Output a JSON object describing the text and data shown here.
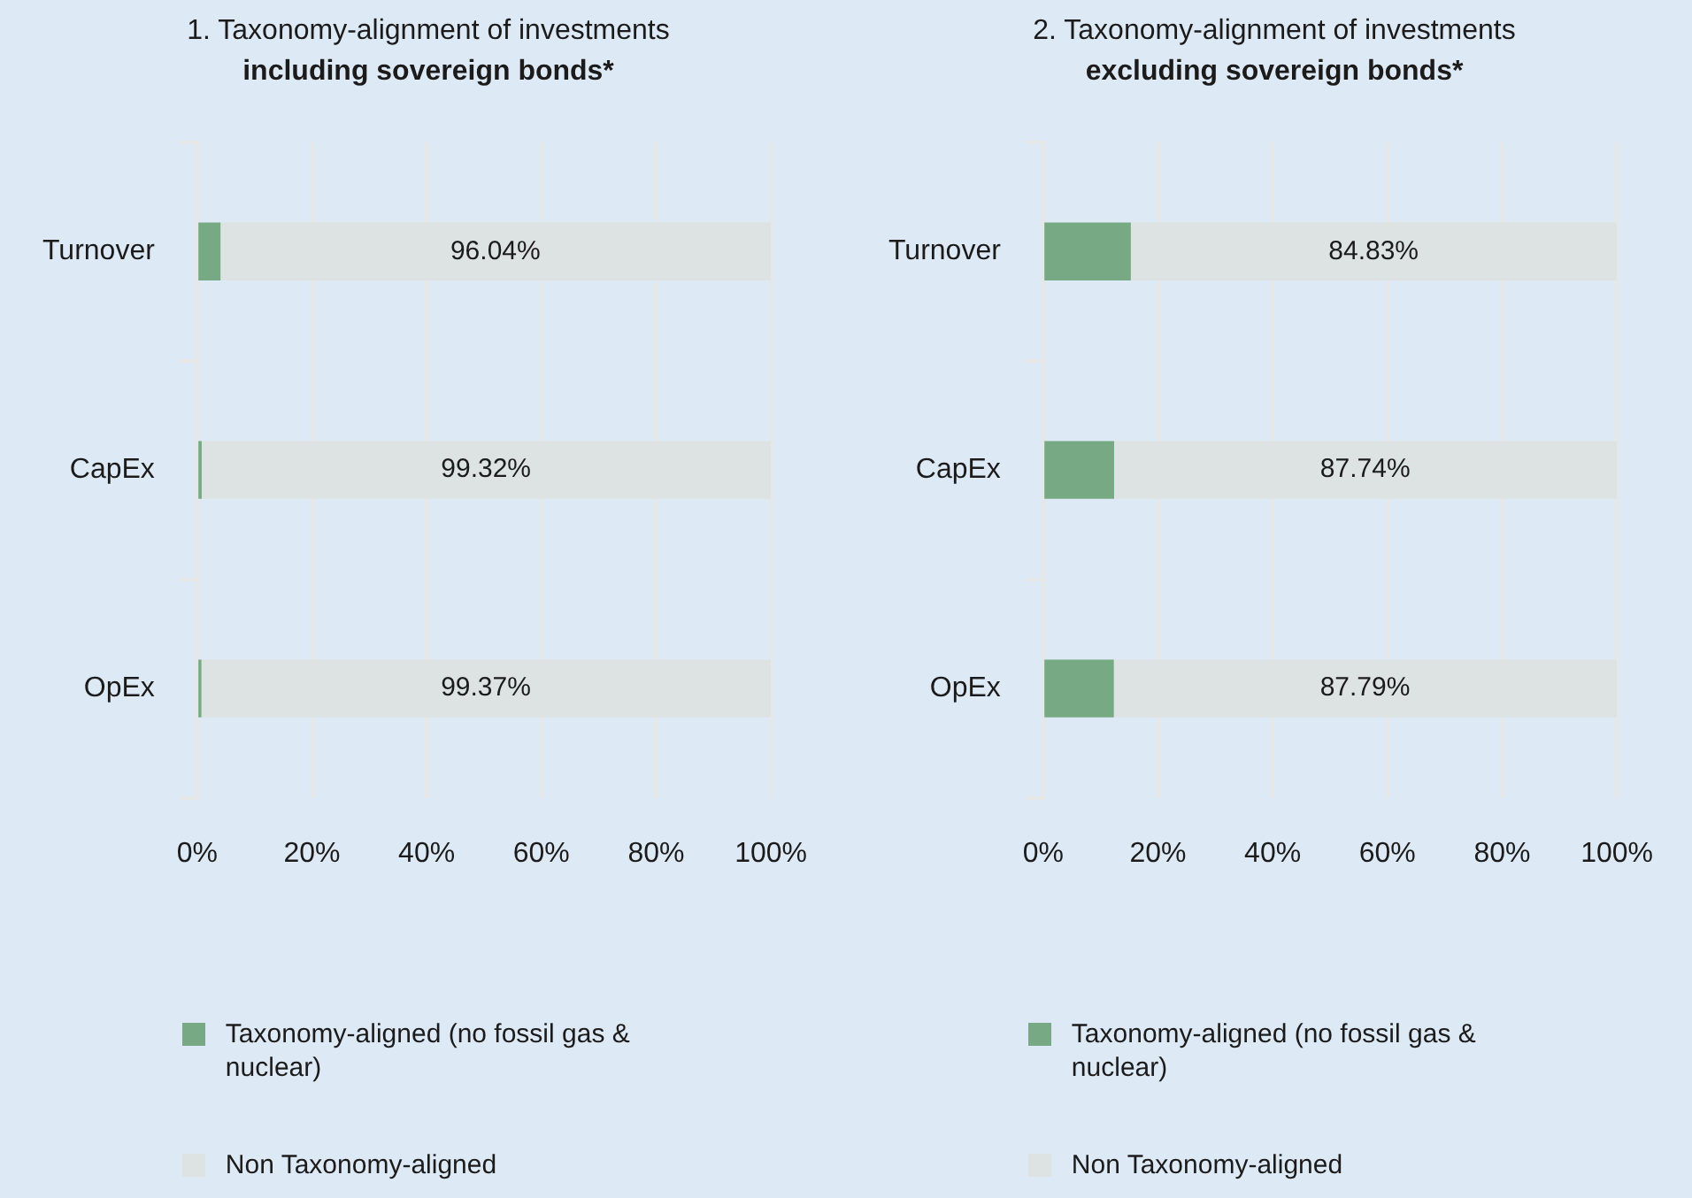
{
  "chart_data": [
    {
      "type": "bar",
      "orientation": "horizontal",
      "stacked": true,
      "title": "1. Taxonomy-alignment of investments",
      "subtitle": "including sovereign bonds*",
      "categories": [
        "Turnover",
        "CapEx",
        "OpEx"
      ],
      "series": [
        {
          "name": "Taxonomy-aligned (no fossil gas & nuclear)",
          "color": "#77aa84",
          "values": [
            3.96,
            0.68,
            0.63
          ]
        },
        {
          "name": "Non Taxonomy-aligned",
          "color": "#dde3e2",
          "values": [
            96.04,
            99.32,
            99.37
          ],
          "value_labels": [
            "96.04%",
            "99.32%",
            "99.37%"
          ]
        }
      ],
      "xlim": [
        0,
        100
      ],
      "xticks": [
        {
          "value": 0,
          "label": "0%"
        },
        {
          "value": 20,
          "label": "20%"
        },
        {
          "value": 40,
          "label": "40%"
        },
        {
          "value": 60,
          "label": "60%"
        },
        {
          "value": 80,
          "label": "80%"
        },
        {
          "value": 100,
          "label": "100%"
        }
      ],
      "grid": "x",
      "legend": "bottom"
    },
    {
      "type": "bar",
      "orientation": "horizontal",
      "stacked": true,
      "title": "2. Taxonomy-alignment of investments",
      "subtitle": "excluding sovereign bonds*",
      "categories": [
        "Turnover",
        "CapEx",
        "OpEx"
      ],
      "series": [
        {
          "name": "Taxonomy-aligned (no fossil gas & nuclear)",
          "color": "#77aa84",
          "values": [
            15.17,
            12.26,
            12.21
          ]
        },
        {
          "name": "Non Taxonomy-aligned",
          "color": "#dde3e2",
          "values": [
            84.83,
            87.74,
            87.79
          ],
          "value_labels": [
            "84.83%",
            "87.74%",
            "87.79%"
          ]
        }
      ],
      "xlim": [
        0,
        100
      ],
      "xticks": [
        {
          "value": 0,
          "label": "0%"
        },
        {
          "value": 20,
          "label": "20%"
        },
        {
          "value": 40,
          "label": "40%"
        },
        {
          "value": 60,
          "label": "60%"
        },
        {
          "value": 80,
          "label": "80%"
        },
        {
          "value": 100,
          "label": "100%"
        }
      ],
      "grid": "x",
      "legend": "bottom"
    }
  ]
}
